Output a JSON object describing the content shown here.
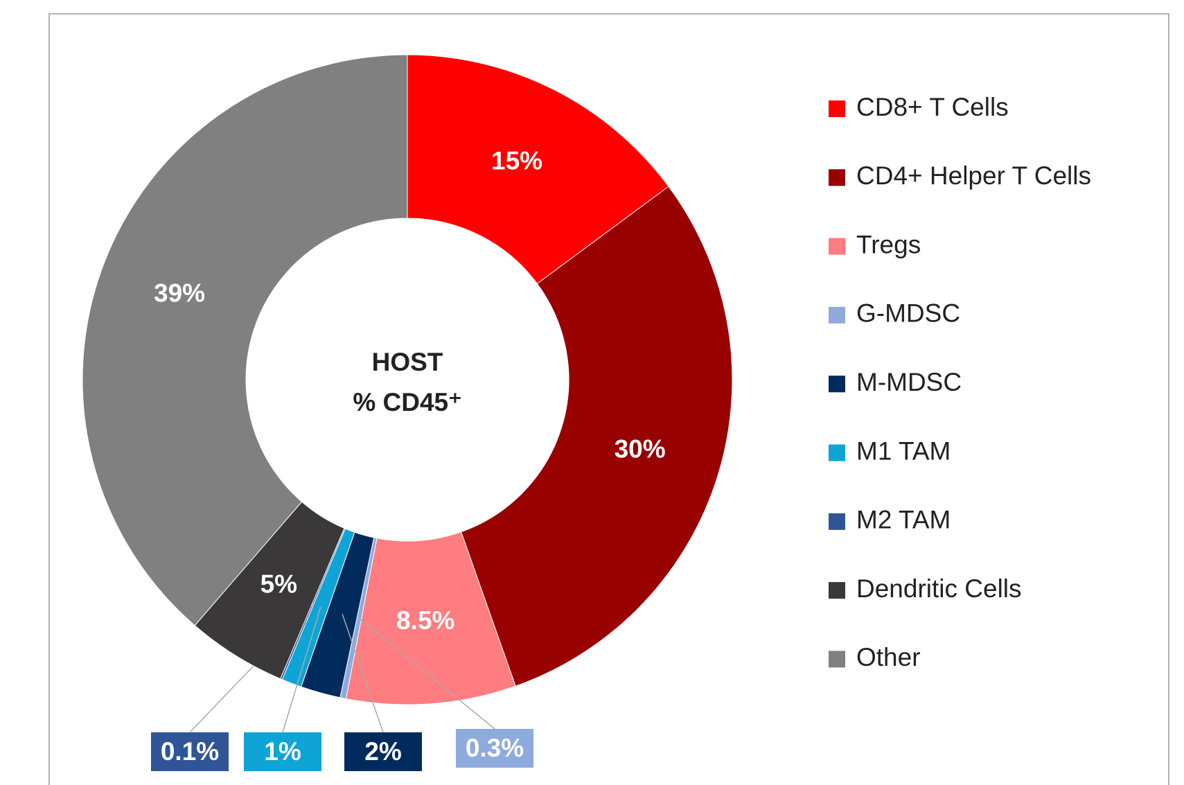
{
  "chart_data": {
    "type": "donut",
    "center_label": [
      "HOST",
      "% CD45⁺"
    ],
    "categories": [
      "CD8+ T Cells",
      "CD4+ Helper T Cells",
      "Tregs",
      "G-MDSC",
      "M-MDSC",
      "M1 TAM",
      "M2 TAM",
      "Dendritic Cells",
      "Other"
    ],
    "values": [
      15,
      30,
      8.5,
      0.3,
      2,
      1,
      0.1,
      5,
      39
    ],
    "value_labels": [
      "15%",
      "30%",
      "8.5%",
      "0.3%",
      "2%",
      "1%",
      "0.1%",
      "5%",
      "39%"
    ],
    "colors": [
      "#ff0000",
      "#990000",
      "#ff7c80",
      "#8faadc",
      "#002b5c",
      "#0fa4d6",
      "#2f5597",
      "#3a3838",
      "#808080"
    ],
    "legend": "right"
  }
}
